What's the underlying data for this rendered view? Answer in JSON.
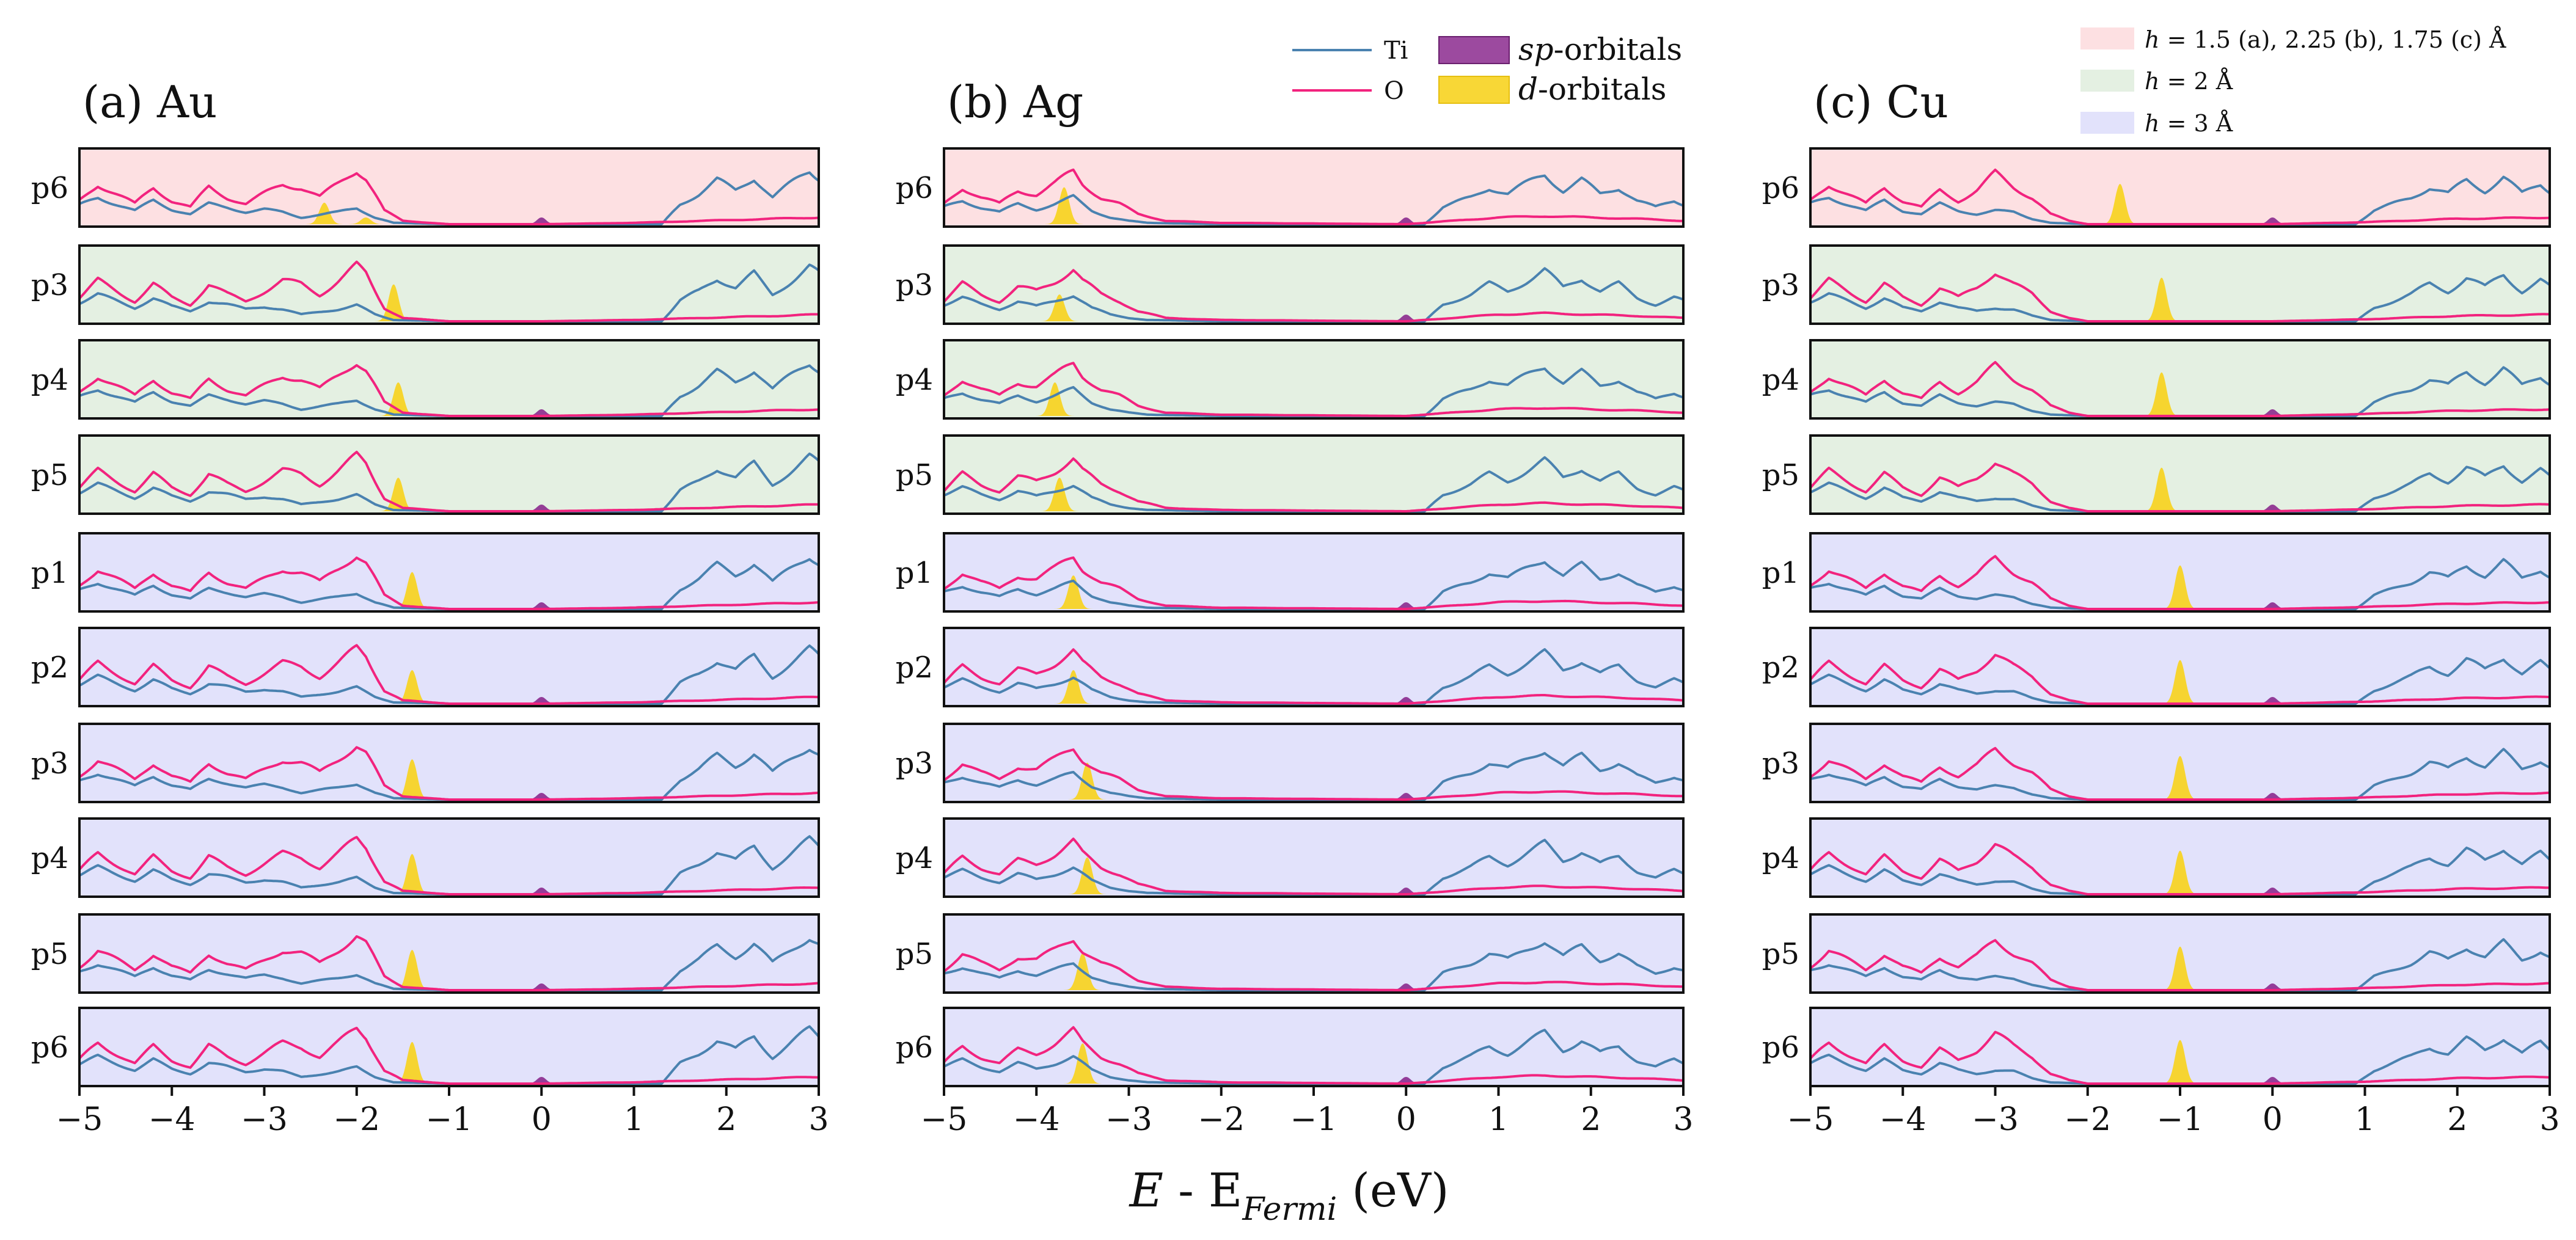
{
  "figure": {
    "xlabel": {
      "prefix": "E",
      "middle": " - E",
      "subscript": "Fermi",
      "suffix": " (eV)"
    }
  },
  "legend_lines": {
    "ti": "Ti",
    "o": "O"
  },
  "legend_fills": {
    "sp": {
      "italic": "sp",
      "rest": "-orbitals"
    },
    "d": {
      "italic": "d",
      "rest": "-orbitals"
    }
  },
  "legend_heights": {
    "red": {
      "h": "h",
      "rest": " = 1.5 (a), 2.25 (b), 1.75 (c) Å"
    },
    "green": {
      "h": "h",
      "rest": " = 2 Å"
    },
    "blue": {
      "h": "h",
      "rest": " = 3 Å"
    }
  },
  "colors": {
    "ti": "#4a82b0",
    "o": "#f2237e",
    "sp_fill": "#8b2a8e",
    "d_fill": "#f7d320",
    "band_red": "#fde0e2",
    "band_green": "#e4f0e2",
    "band_blue": "#e2e2fb"
  },
  "chart_data": [
    {
      "type": "area",
      "title": "(a) Au",
      "xlabel": "E - E_Fermi (eV)",
      "xlim": [
        -5,
        3
      ],
      "xticks": [
        "−5",
        "−4",
        "−3",
        "−2",
        "−1",
        "0",
        "1",
        "2",
        "3"
      ],
      "xtick_values": [
        -5,
        -4,
        -3,
        -2,
        -1,
        0,
        1,
        2,
        3
      ],
      "rows": [
        {
          "label": "p6",
          "height_group": "red",
          "d_peaks": [
            [
              -2.35,
              0.32
            ],
            [
              -1.9,
              0.1
            ]
          ],
          "sp_peak": 0.0
        },
        {
          "label": "p3",
          "height_group": "green",
          "d_peaks": [
            [
              -1.6,
              0.55
            ]
          ],
          "sp_peak": null
        },
        {
          "label": "p4",
          "height_group": "green",
          "d_peaks": [
            [
              -1.55,
              0.5
            ]
          ],
          "sp_peak": 0.0
        },
        {
          "label": "p5",
          "height_group": "green",
          "d_peaks": [
            [
              -1.55,
              0.5
            ]
          ],
          "sp_peak": 0.0
        },
        {
          "label": "p1",
          "height_group": "blue",
          "d_peaks": [
            [
              -1.4,
              0.55
            ]
          ],
          "sp_peak": 0.0
        },
        {
          "label": "p2",
          "height_group": "blue",
          "d_peaks": [
            [
              -1.4,
              0.5
            ]
          ],
          "sp_peak": 0.0
        },
        {
          "label": "p3",
          "height_group": "blue",
          "d_peaks": [
            [
              -1.4,
              0.6
            ]
          ],
          "sp_peak": 0.0
        },
        {
          "label": "p4",
          "height_group": "blue",
          "d_peaks": [
            [
              -1.4,
              0.6
            ]
          ],
          "sp_peak": 0.0
        },
        {
          "label": "p5",
          "height_group": "blue",
          "d_peaks": [
            [
              -1.4,
              0.6
            ]
          ],
          "sp_peak": 0.0
        },
        {
          "label": "p6",
          "height_group": "blue",
          "d_peaks": [
            [
              -1.4,
              0.62
            ]
          ],
          "sp_peak": 0.0
        }
      ],
      "ti_dos": [
        [
          -5,
          0.28
        ],
        [
          -4.8,
          0.4
        ],
        [
          -4.6,
          0.3
        ],
        [
          -4.4,
          0.2
        ],
        [
          -4.2,
          0.35
        ],
        [
          -4.0,
          0.22
        ],
        [
          -3.8,
          0.15
        ],
        [
          -3.6,
          0.3
        ],
        [
          -3.4,
          0.25
        ],
        [
          -3.2,
          0.18
        ],
        [
          -3.0,
          0.22
        ],
        [
          -2.8,
          0.18
        ],
        [
          -2.6,
          0.1
        ],
        [
          -2.4,
          0.14
        ],
        [
          -2.2,
          0.18
        ],
        [
          -2.0,
          0.24
        ],
        [
          -1.8,
          0.1
        ],
        [
          -1.6,
          0.02
        ],
        [
          -1.0,
          0.0
        ],
        [
          1.3,
          0.0
        ],
        [
          1.5,
          0.3
        ],
        [
          1.7,
          0.45
        ],
        [
          1.9,
          0.65
        ],
        [
          2.1,
          0.5
        ],
        [
          2.3,
          0.7
        ],
        [
          2.5,
          0.4
        ],
        [
          2.7,
          0.6
        ],
        [
          2.9,
          0.8
        ],
        [
          3.0,
          0.7
        ]
      ],
      "o_dos": [
        [
          -5,
          0.35
        ],
        [
          -4.8,
          0.6
        ],
        [
          -4.6,
          0.45
        ],
        [
          -4.4,
          0.3
        ],
        [
          -4.2,
          0.55
        ],
        [
          -4.0,
          0.35
        ],
        [
          -3.8,
          0.25
        ],
        [
          -3.6,
          0.55
        ],
        [
          -3.4,
          0.4
        ],
        [
          -3.2,
          0.3
        ],
        [
          -3.0,
          0.45
        ],
        [
          -2.8,
          0.6
        ],
        [
          -2.6,
          0.55
        ],
        [
          -2.4,
          0.4
        ],
        [
          -2.2,
          0.6
        ],
        [
          -2.0,
          0.82
        ],
        [
          -1.9,
          0.7
        ],
        [
          -1.7,
          0.2
        ],
        [
          -1.5,
          0.05
        ],
        [
          -1.0,
          0.0
        ],
        [
          0,
          0.0
        ],
        [
          1.0,
          0.02
        ],
        [
          2.0,
          0.06
        ],
        [
          3.0,
          0.1
        ]
      ]
    },
    {
      "type": "area",
      "title": "(b) Ag",
      "xlabel": "E - E_Fermi (eV)",
      "xlim": [
        -5,
        3
      ],
      "xticks": [
        "−5",
        "−4",
        "−3",
        "−2",
        "−1",
        "0",
        "1",
        "2",
        "3"
      ],
      "xtick_values": [
        -5,
        -4,
        -3,
        -2,
        -1,
        0,
        1,
        2,
        3
      ],
      "rows": [
        {
          "label": "p6",
          "height_group": "red",
          "d_peaks": [
            [
              -3.7,
              0.55
            ]
          ],
          "sp_peak": 0.0
        },
        {
          "label": "p3",
          "height_group": "green",
          "d_peaks": [
            [
              -3.75,
              0.4
            ]
          ],
          "sp_peak": 0.0
        },
        {
          "label": "p4",
          "height_group": "green",
          "d_peaks": [
            [
              -3.8,
              0.5
            ]
          ],
          "sp_peak": null
        },
        {
          "label": "p5",
          "height_group": "green",
          "d_peaks": [
            [
              -3.75,
              0.5
            ]
          ],
          "sp_peak": null
        },
        {
          "label": "p1",
          "height_group": "blue",
          "d_peaks": [
            [
              -3.6,
              0.5
            ]
          ],
          "sp_peak": 0.0
        },
        {
          "label": "p2",
          "height_group": "blue",
          "d_peaks": [
            [
              -3.6,
              0.5
            ]
          ],
          "sp_peak": 0.0
        },
        {
          "label": "p3",
          "height_group": "blue",
          "d_peaks": [
            [
              -3.45,
              0.55
            ]
          ],
          "sp_peak": 0.0
        },
        {
          "label": "p4",
          "height_group": "blue",
          "d_peaks": [
            [
              -3.45,
              0.55
            ]
          ],
          "sp_peak": 0.0
        },
        {
          "label": "p5",
          "height_group": "blue",
          "d_peaks": [
            [
              -3.5,
              0.55
            ]
          ],
          "sp_peak": 0.0
        },
        {
          "label": "p6",
          "height_group": "blue",
          "d_peaks": [
            [
              -3.5,
              0.6
            ]
          ],
          "sp_peak": 0.0
        }
      ],
      "ti_dos": [
        [
          -5,
          0.25
        ],
        [
          -4.8,
          0.35
        ],
        [
          -4.6,
          0.25
        ],
        [
          -4.4,
          0.18
        ],
        [
          -4.2,
          0.3
        ],
        [
          -4.0,
          0.22
        ],
        [
          -3.8,
          0.3
        ],
        [
          -3.6,
          0.4
        ],
        [
          -3.4,
          0.2
        ],
        [
          -3.2,
          0.1
        ],
        [
          -3.0,
          0.05
        ],
        [
          -2.8,
          0.02
        ],
        [
          -2.0,
          0.0
        ],
        [
          0.2,
          0.0
        ],
        [
          0.4,
          0.25
        ],
        [
          0.7,
          0.4
        ],
        [
          0.9,
          0.55
        ],
        [
          1.1,
          0.45
        ],
        [
          1.3,
          0.6
        ],
        [
          1.5,
          0.75
        ],
        [
          1.7,
          0.5
        ],
        [
          1.9,
          0.65
        ],
        [
          2.1,
          0.45
        ],
        [
          2.3,
          0.55
        ],
        [
          2.5,
          0.35
        ],
        [
          2.7,
          0.25
        ],
        [
          2.9,
          0.35
        ],
        [
          3.0,
          0.3
        ]
      ],
      "o_dos": [
        [
          -5,
          0.3
        ],
        [
          -4.8,
          0.55
        ],
        [
          -4.6,
          0.4
        ],
        [
          -4.4,
          0.3
        ],
        [
          -4.2,
          0.5
        ],
        [
          -4.0,
          0.45
        ],
        [
          -3.8,
          0.6
        ],
        [
          -3.6,
          0.78
        ],
        [
          -3.5,
          0.6
        ],
        [
          -3.3,
          0.4
        ],
        [
          -3.1,
          0.3
        ],
        [
          -2.9,
          0.15
        ],
        [
          -2.6,
          0.05
        ],
        [
          -2.0,
          0.02
        ],
        [
          0,
          0.0
        ],
        [
          0.5,
          0.05
        ],
        [
          1.0,
          0.1
        ],
        [
          1.5,
          0.12
        ],
        [
          2.0,
          0.1
        ],
        [
          2.5,
          0.08
        ],
        [
          3.0,
          0.05
        ]
      ]
    },
    {
      "type": "area",
      "title": "(c) Cu",
      "xlabel": "E - E_Fermi (eV)",
      "xlim": [
        -5,
        3
      ],
      "xticks": [
        "−5",
        "−4",
        "−3",
        "−2",
        "−1",
        "0",
        "1",
        "2",
        "3"
      ],
      "xtick_values": [
        -5,
        -4,
        -3,
        -2,
        -1,
        0,
        1,
        2,
        3
      ],
      "rows": [
        {
          "label": "p6",
          "height_group": "red",
          "d_peaks": [
            [
              -1.65,
              0.6
            ]
          ],
          "sp_peak": 0.0
        },
        {
          "label": "p3",
          "height_group": "green",
          "d_peaks": [
            [
              -1.2,
              0.65
            ]
          ],
          "sp_peak": null
        },
        {
          "label": "p4",
          "height_group": "green",
          "d_peaks": [
            [
              -1.2,
              0.65
            ]
          ],
          "sp_peak": 0.0
        },
        {
          "label": "p5",
          "height_group": "green",
          "d_peaks": [
            [
              -1.2,
              0.65
            ]
          ],
          "sp_peak": 0.0
        },
        {
          "label": "p1",
          "height_group": "blue",
          "d_peaks": [
            [
              -1.0,
              0.65
            ]
          ],
          "sp_peak": 0.0
        },
        {
          "label": "p2",
          "height_group": "blue",
          "d_peaks": [
            [
              -1.0,
              0.65
            ]
          ],
          "sp_peak": 0.0
        },
        {
          "label": "p3",
          "height_group": "blue",
          "d_peaks": [
            [
              -1.0,
              0.65
            ]
          ],
          "sp_peak": 0.0
        },
        {
          "label": "p4",
          "height_group": "blue",
          "d_peaks": [
            [
              -1.0,
              0.65
            ]
          ],
          "sp_peak": 0.0
        },
        {
          "label": "p5",
          "height_group": "blue",
          "d_peaks": [
            [
              -1.0,
              0.65
            ]
          ],
          "sp_peak": 0.0
        },
        {
          "label": "p6",
          "height_group": "blue",
          "d_peaks": [
            [
              -1.0,
              0.65
            ]
          ],
          "sp_peak": 0.0
        }
      ],
      "ti_dos": [
        [
          -5,
          0.3
        ],
        [
          -4.8,
          0.4
        ],
        [
          -4.6,
          0.3
        ],
        [
          -4.4,
          0.2
        ],
        [
          -4.2,
          0.35
        ],
        [
          -4.0,
          0.2
        ],
        [
          -3.8,
          0.15
        ],
        [
          -3.6,
          0.3
        ],
        [
          -3.4,
          0.2
        ],
        [
          -3.2,
          0.15
        ],
        [
          -3.0,
          0.2
        ],
        [
          -2.8,
          0.18
        ],
        [
          -2.6,
          0.08
        ],
        [
          -2.4,
          0.02
        ],
        [
          -2.0,
          0.0
        ],
        [
          0.9,
          0.0
        ],
        [
          1.1,
          0.2
        ],
        [
          1.3,
          0.3
        ],
        [
          1.5,
          0.4
        ],
        [
          1.7,
          0.55
        ],
        [
          1.9,
          0.45
        ],
        [
          2.1,
          0.65
        ],
        [
          2.3,
          0.5
        ],
        [
          2.5,
          0.7
        ],
        [
          2.7,
          0.45
        ],
        [
          2.9,
          0.6
        ],
        [
          3.0,
          0.5
        ]
      ],
      "o_dos": [
        [
          -5,
          0.35
        ],
        [
          -4.8,
          0.6
        ],
        [
          -4.6,
          0.45
        ],
        [
          -4.4,
          0.3
        ],
        [
          -4.2,
          0.55
        ],
        [
          -4.0,
          0.35
        ],
        [
          -3.8,
          0.25
        ],
        [
          -3.6,
          0.5
        ],
        [
          -3.4,
          0.35
        ],
        [
          -3.2,
          0.5
        ],
        [
          -3.0,
          0.75
        ],
        [
          -2.8,
          0.55
        ],
        [
          -2.6,
          0.4
        ],
        [
          -2.4,
          0.15
        ],
        [
          -2.2,
          0.05
        ],
        [
          -2.0,
          0.0
        ],
        [
          0,
          0.0
        ],
        [
          1.0,
          0.03
        ],
        [
          2.0,
          0.08
        ],
        [
          3.0,
          0.1
        ]
      ]
    }
  ]
}
